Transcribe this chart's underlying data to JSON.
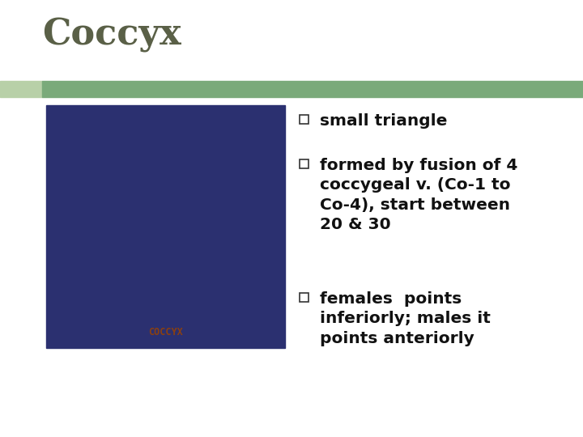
{
  "title": "Coccyx",
  "title_color": "#5a6047",
  "title_fontsize": 32,
  "title_fontstyle": "normal",
  "title_fontweight": "bold",
  "background_color": "#ffffff",
  "header_bar_color": "#7aaa7a",
  "header_bar_left_color": "#b8d0a8",
  "bullet_color": "#111111",
  "bullet_fontsize": 14.5,
  "bullet_fontweight": "bold",
  "bullets": [
    "small triangle",
    "formed by fusion of 4\ncoccygeal v. (Co-1 to\nCo-4), start between\n20 & 30",
    "females  points\ninferiorly; males it\npoints anteriorly"
  ],
  "image_placeholder_color": "#2b3070",
  "coccyx_label_color": "#8b4010"
}
